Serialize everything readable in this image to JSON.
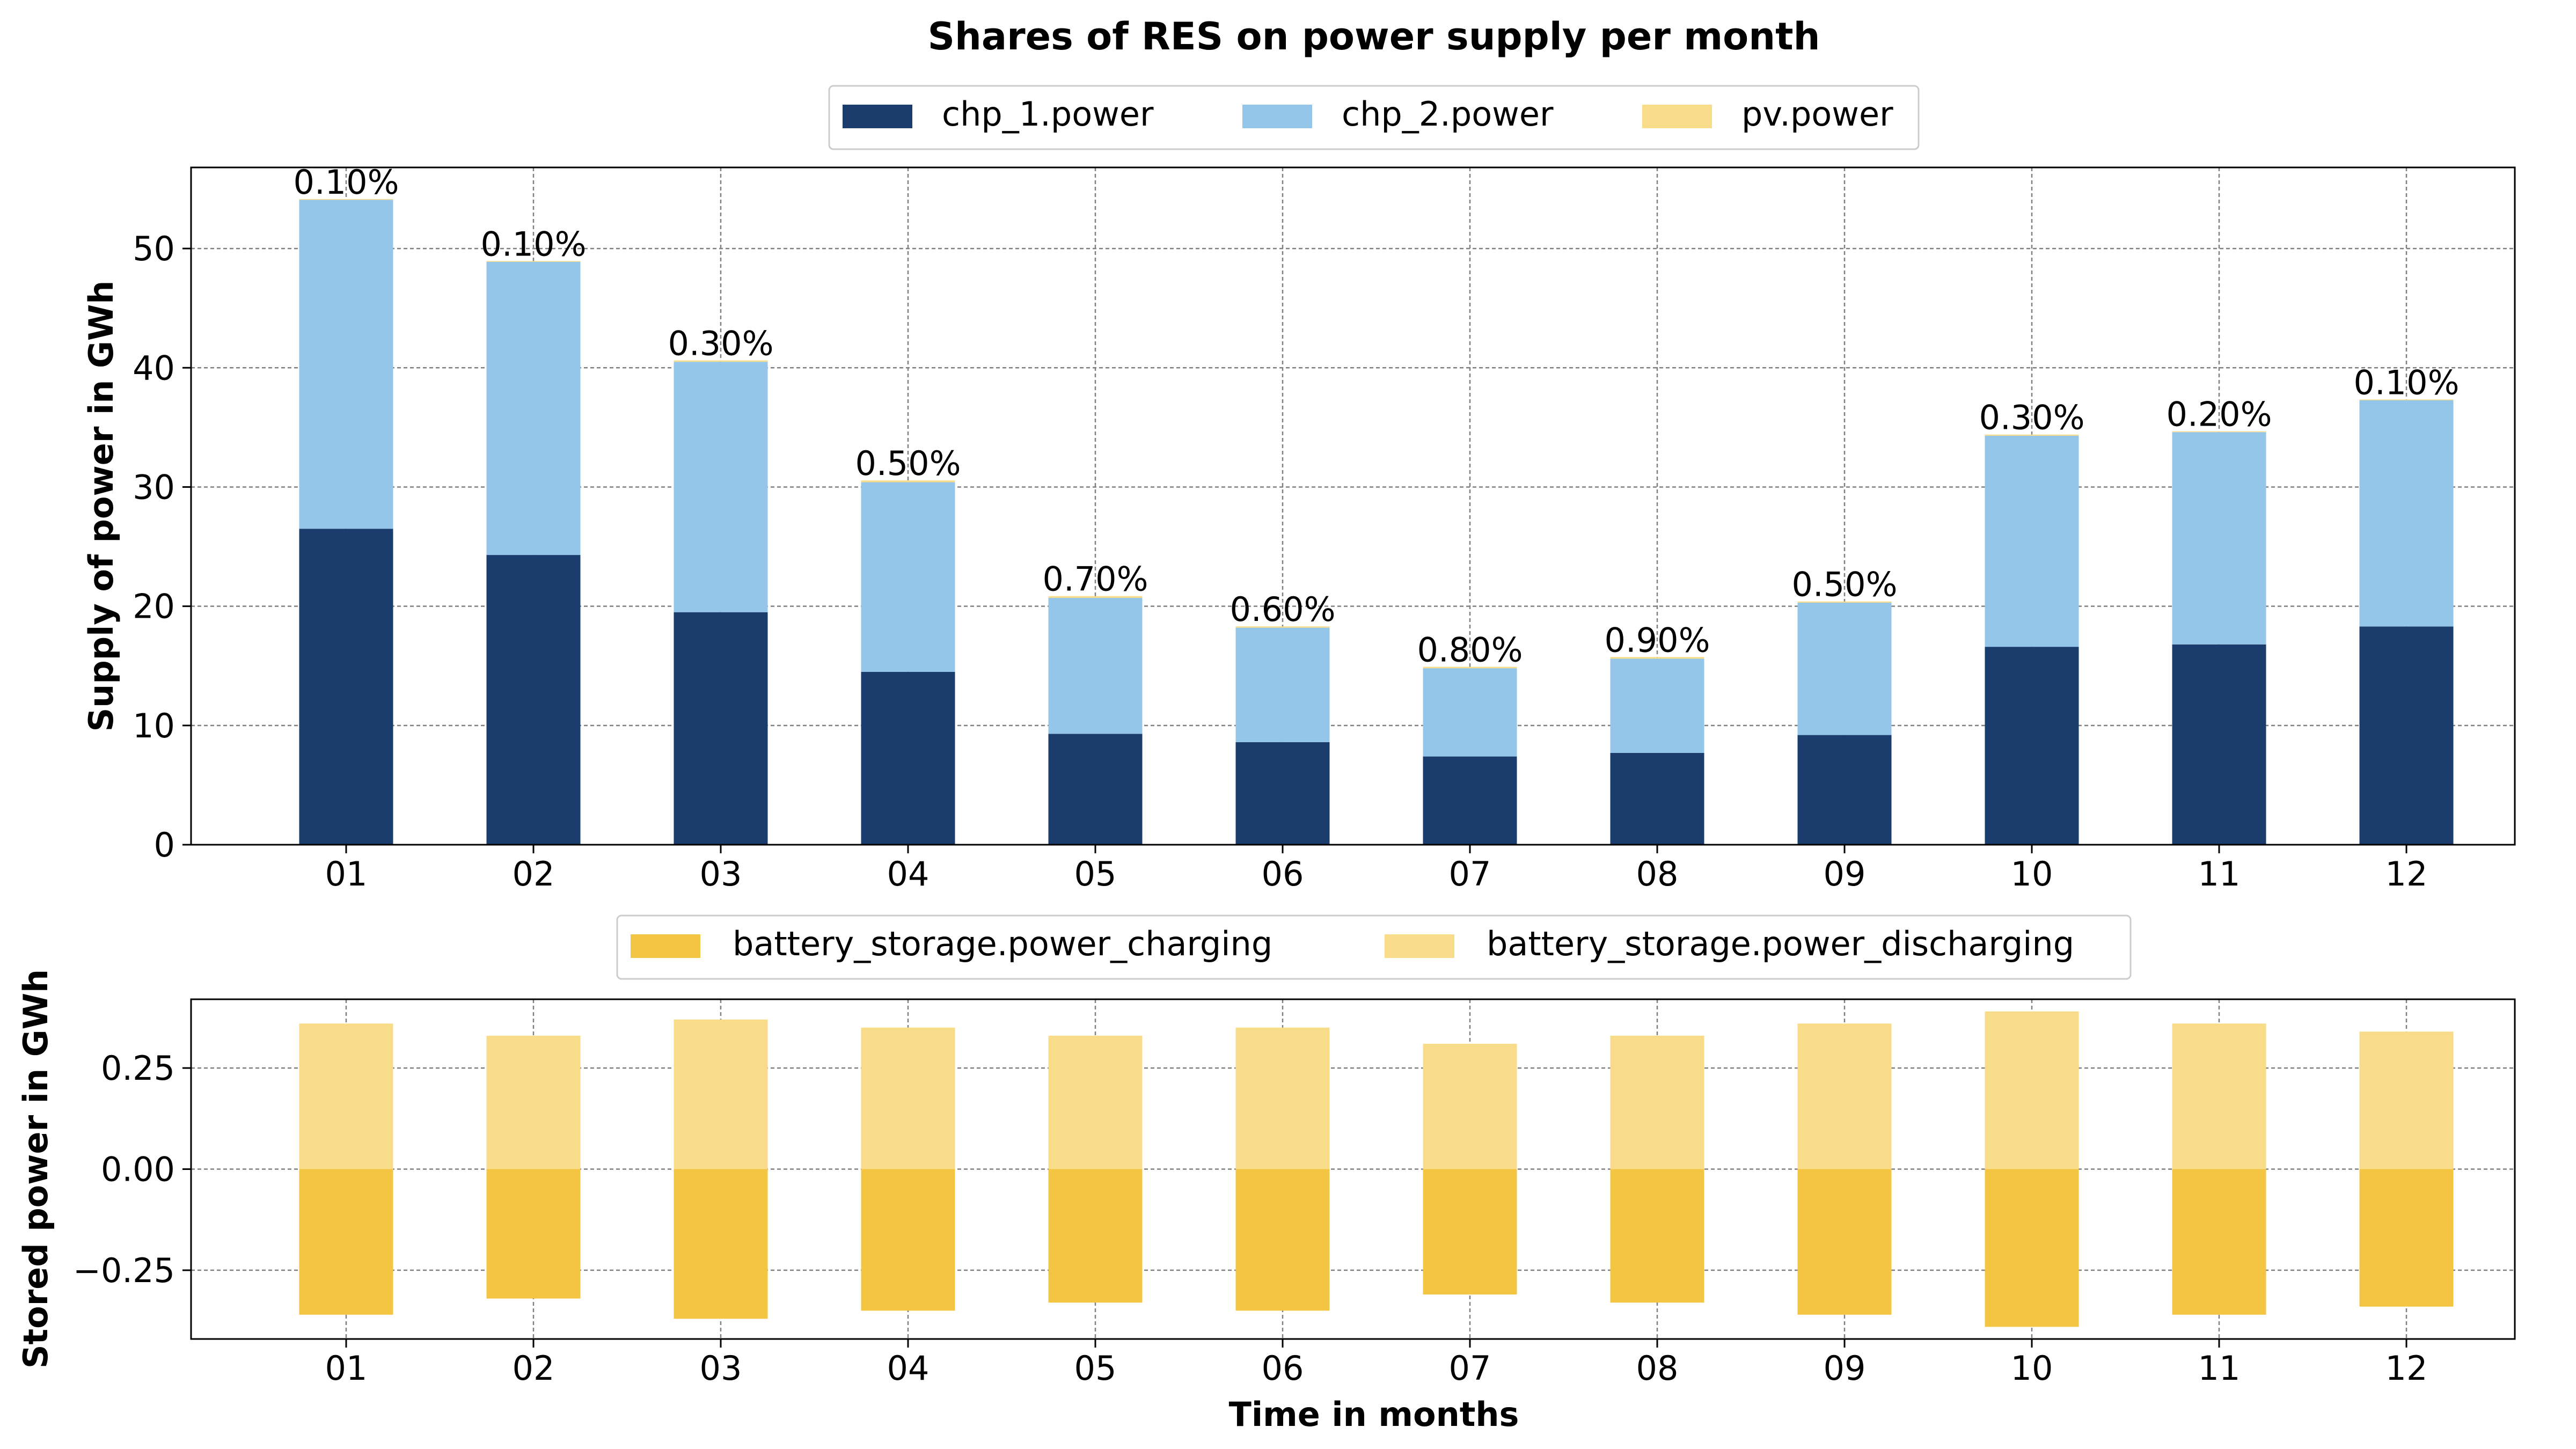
{
  "chart_data": [
    {
      "type": "bar",
      "stacked": true,
      "title": "Shares of RES on power supply per month",
      "xlabel": "",
      "ylabel": "Supply of power in GWh",
      "categories": [
        "01",
        "02",
        "03",
        "04",
        "05",
        "06",
        "07",
        "08",
        "09",
        "10",
        "11",
        "12"
      ],
      "ylim": [
        0,
        56.8
      ],
      "yticks": [
        0,
        10,
        20,
        30,
        40,
        50
      ],
      "ytick_labels": [
        "0",
        "10",
        "20",
        "30",
        "40",
        "50"
      ],
      "grid": true,
      "legend_position": "top-center",
      "series": [
        {
          "name": "chp_1.power",
          "color": "#1a3d6e",
          "values": [
            26.5,
            24.3,
            19.5,
            14.5,
            9.3,
            8.6,
            7.4,
            7.7,
            9.2,
            16.6,
            16.8,
            18.3
          ]
        },
        {
          "name": "chp_2.power",
          "color": "#94c6ea",
          "values": [
            27.6,
            24.6,
            21.0,
            15.9,
            11.4,
            9.6,
            7.4,
            7.9,
            11.1,
            17.7,
            17.8,
            19.0
          ]
        },
        {
          "name": "pv.power",
          "color": "#f8dc8a",
          "values": [
            0.05,
            0.05,
            0.12,
            0.15,
            0.15,
            0.11,
            0.12,
            0.14,
            0.1,
            0.1,
            0.07,
            0.04
          ]
        }
      ],
      "data_labels": [
        "0.10%",
        "0.10%",
        "0.30%",
        "0.50%",
        "0.70%",
        "0.60%",
        "0.80%",
        "0.90%",
        "0.50%",
        "0.30%",
        "0.20%",
        "0.10%"
      ]
    },
    {
      "type": "bar",
      "xlabel": "Time in months",
      "ylabel": "Stored power in GWh",
      "categories": [
        "01",
        "02",
        "03",
        "04",
        "05",
        "06",
        "07",
        "08",
        "09",
        "10",
        "11",
        "12"
      ],
      "ylim": [
        -0.42,
        0.42
      ],
      "yticks": [
        -0.25,
        0,
        0.25
      ],
      "ytick_labels": [
        "−0.25",
        "0.00",
        "0.25"
      ],
      "grid": true,
      "legend_position": "top-center",
      "series": [
        {
          "name": "battery_storage.power_charging",
          "color": "#f4c443",
          "values": [
            -0.36,
            -0.32,
            -0.37,
            -0.35,
            -0.33,
            -0.35,
            -0.31,
            -0.33,
            -0.36,
            -0.39,
            -0.36,
            -0.34
          ]
        },
        {
          "name": "battery_storage.power_discharging",
          "color": "#f8dc8a",
          "values": [
            0.36,
            0.33,
            0.37,
            0.35,
            0.33,
            0.35,
            0.31,
            0.33,
            0.36,
            0.39,
            0.36,
            0.34
          ]
        }
      ]
    }
  ]
}
